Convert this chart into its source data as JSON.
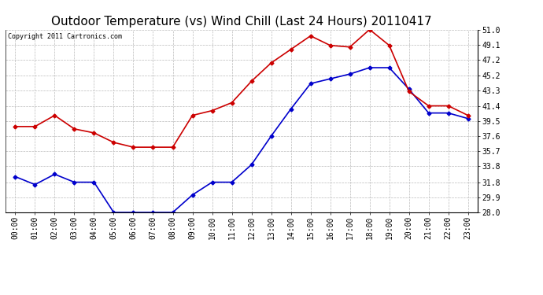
{
  "title": "Outdoor Temperature (vs) Wind Chill (Last 24 Hours) 20110417",
  "copyright": "Copyright 2011 Cartronics.com",
  "x_labels": [
    "00:00",
    "01:00",
    "02:00",
    "03:00",
    "04:00",
    "05:00",
    "06:00",
    "07:00",
    "08:00",
    "09:00",
    "10:00",
    "11:00",
    "12:00",
    "13:00",
    "14:00",
    "15:00",
    "16:00",
    "17:00",
    "18:00",
    "19:00",
    "20:00",
    "21:00",
    "22:00",
    "23:00"
  ],
  "outdoor_temp": [
    32.5,
    31.5,
    32.8,
    31.8,
    31.8,
    28.0,
    28.0,
    28.0,
    28.0,
    30.2,
    31.8,
    31.8,
    34.0,
    37.6,
    41.0,
    44.2,
    44.8,
    45.4,
    46.2,
    46.2,
    43.5,
    40.5,
    40.5,
    39.8
  ],
  "wind_chill": [
    38.8,
    38.8,
    40.2,
    38.5,
    38.0,
    36.8,
    36.2,
    36.2,
    36.2,
    40.2,
    40.8,
    41.8,
    44.5,
    46.8,
    48.5,
    50.2,
    49.0,
    48.8,
    51.0,
    49.0,
    43.2,
    41.4,
    41.4,
    40.2
  ],
  "temp_color": "#0000cc",
  "wind_chill_color": "#cc0000",
  "bg_color": "#ffffff",
  "plot_bg_color": "#ffffff",
  "grid_color": "#bbbbbb",
  "ylim": [
    28.0,
    51.0
  ],
  "yticks": [
    28.0,
    29.9,
    31.8,
    33.8,
    35.7,
    37.6,
    39.5,
    41.4,
    43.3,
    45.2,
    47.2,
    49.1,
    51.0
  ],
  "title_fontsize": 11,
  "copyright_fontsize": 6,
  "tick_fontsize": 7,
  "markersize": 2.5,
  "linewidth": 1.2
}
